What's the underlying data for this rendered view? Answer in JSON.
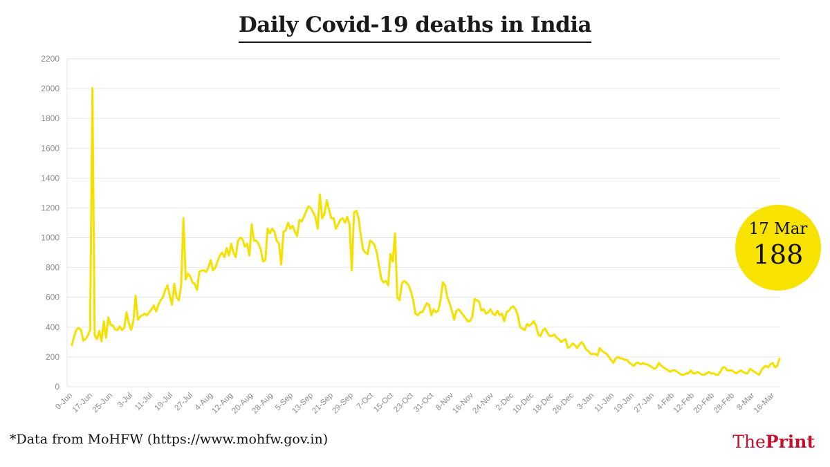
{
  "title": "Daily Covid-19 deaths in India",
  "footnote": "*Data from MoHFW (https://www.mohfw.gov.in)",
  "logo": {
    "part1": "The",
    "part2": "Print"
  },
  "badge": {
    "date": "17 Mar",
    "value": "188"
  },
  "colors": {
    "line": "#f5e100",
    "badge": "#f7e200",
    "logo": "#c8102e",
    "grid": "#e6e6e6"
  },
  "chart_data": {
    "type": "line",
    "title": "Daily Covid-19 deaths in India",
    "xlabel": "",
    "ylabel": "",
    "ylim": [
      0,
      2200
    ],
    "yticks": [
      0,
      200,
      400,
      600,
      800,
      1000,
      1200,
      1400,
      1600,
      1800,
      2000,
      2200
    ],
    "grid": true,
    "x_tick_labels": [
      "9-Jun",
      "17-Jun",
      "25-Jun",
      "3-Jul",
      "11-Jul",
      "19-Jul",
      "27-Jul",
      "4-Aug",
      "12-Aug",
      "20-Aug",
      "28-Aug",
      "5-Sep",
      "13-Sep",
      "21-Sep",
      "29-Sep",
      "7-Oct",
      "15-Oct",
      "23-Oct",
      "31-Oct",
      "8-Nov",
      "16-Nov",
      "24-Nov",
      "2-Dec",
      "10-Dec",
      "18-Dec",
      "26-Dec",
      "3-Jan",
      "11-Jan",
      "19-Jan",
      "27-Jan",
      "4-Feb",
      "12-Feb",
      "20-Feb",
      "28-Feb",
      "8-Mar",
      "16-Mar"
    ],
    "series": [
      {
        "values": [
          280,
          340,
          385,
          395,
          380,
          310,
          320,
          345,
          380,
          2003,
          345,
          320,
          375,
          305,
          440,
          330,
          465,
          415,
          410,
          385,
          380,
          405,
          380,
          395,
          500,
          430,
          380,
          440,
          610,
          450,
          470,
          480,
          490,
          480,
          500,
          520,
          545,
          505,
          550,
          580,
          600,
          650,
          680,
          610,
          550,
          690,
          600,
          580,
          680,
          1130,
          720,
          760,
          740,
          700,
          690,
          650,
          770,
          780,
          780,
          770,
          800,
          850,
          780,
          800,
          840,
          880,
          900,
          870,
          930,
          880,
          960,
          900,
          870,
          980,
          1000,
          990,
          940,
          960,
          880,
          1090,
          980,
          980,
          960,
          920,
          840,
          850,
          1060,
          1030,
          1060,
          1040,
          980,
          960,
          820,
          1040,
          1050,
          1100,
          1060,
          1080,
          1040,
          1010,
          1120,
          1110,
          1140,
          1180,
          1210,
          1200,
          1170,
          1140,
          1060,
          1290,
          1130,
          1160,
          1250,
          1190,
          1130,
          1130,
          1060,
          1090,
          1120,
          1130,
          1100,
          1140,
          1090,
          780,
          1170,
          1180,
          1130,
          1010,
          920,
          900,
          890,
          980,
          970,
          950,
          900,
          810,
          720,
          700,
          710,
          680,
          890,
          840,
          1030,
          600,
          580,
          690,
          710,
          700,
          680,
          640,
          580,
          490,
          480,
          500,
          500,
          530,
          560,
          550,
          480,
          520,
          500,
          510,
          580,
          700,
          680,
          600,
          560,
          510,
          450,
          510,
          520,
          500,
          480,
          460,
          440,
          440,
          470,
          590,
          580,
          570,
          510,
          520,
          490,
          500,
          520,
          490,
          480,
          510,
          480,
          490,
          440,
          500,
          510,
          530,
          540,
          520,
          480,
          400,
          390,
          380,
          420,
          410,
          420,
          440,
          410,
          350,
          340,
          380,
          390,
          360,
          340,
          340,
          350,
          330,
          320,
          300,
          310,
          320,
          260,
          270,
          290,
          280,
          260,
          280,
          300,
          280,
          250,
          240,
          220,
          220,
          220,
          210,
          260,
          240,
          230,
          220,
          200,
          180,
          160,
          190,
          200,
          190,
          190,
          180,
          180,
          160,
          150,
          140,
          160,
          160,
          150,
          160,
          150,
          150,
          140,
          130,
          120,
          130,
          160,
          140,
          130,
          120,
          110,
          100,
          110,
          110,
          100,
          90,
          80,
          80,
          90,
          90,
          110,
          90,
          90,
          100,
          90,
          80,
          80,
          90,
          100,
          90,
          90,
          80,
          80,
          100,
          130,
          130,
          110,
          110,
          110,
          100,
          90,
          100,
          110,
          100,
          90,
          90,
          120,
          110,
          100,
          90,
          80,
          110,
          130,
          140,
          130,
          150,
          160,
          130,
          140,
          188
        ]
      }
    ]
  }
}
